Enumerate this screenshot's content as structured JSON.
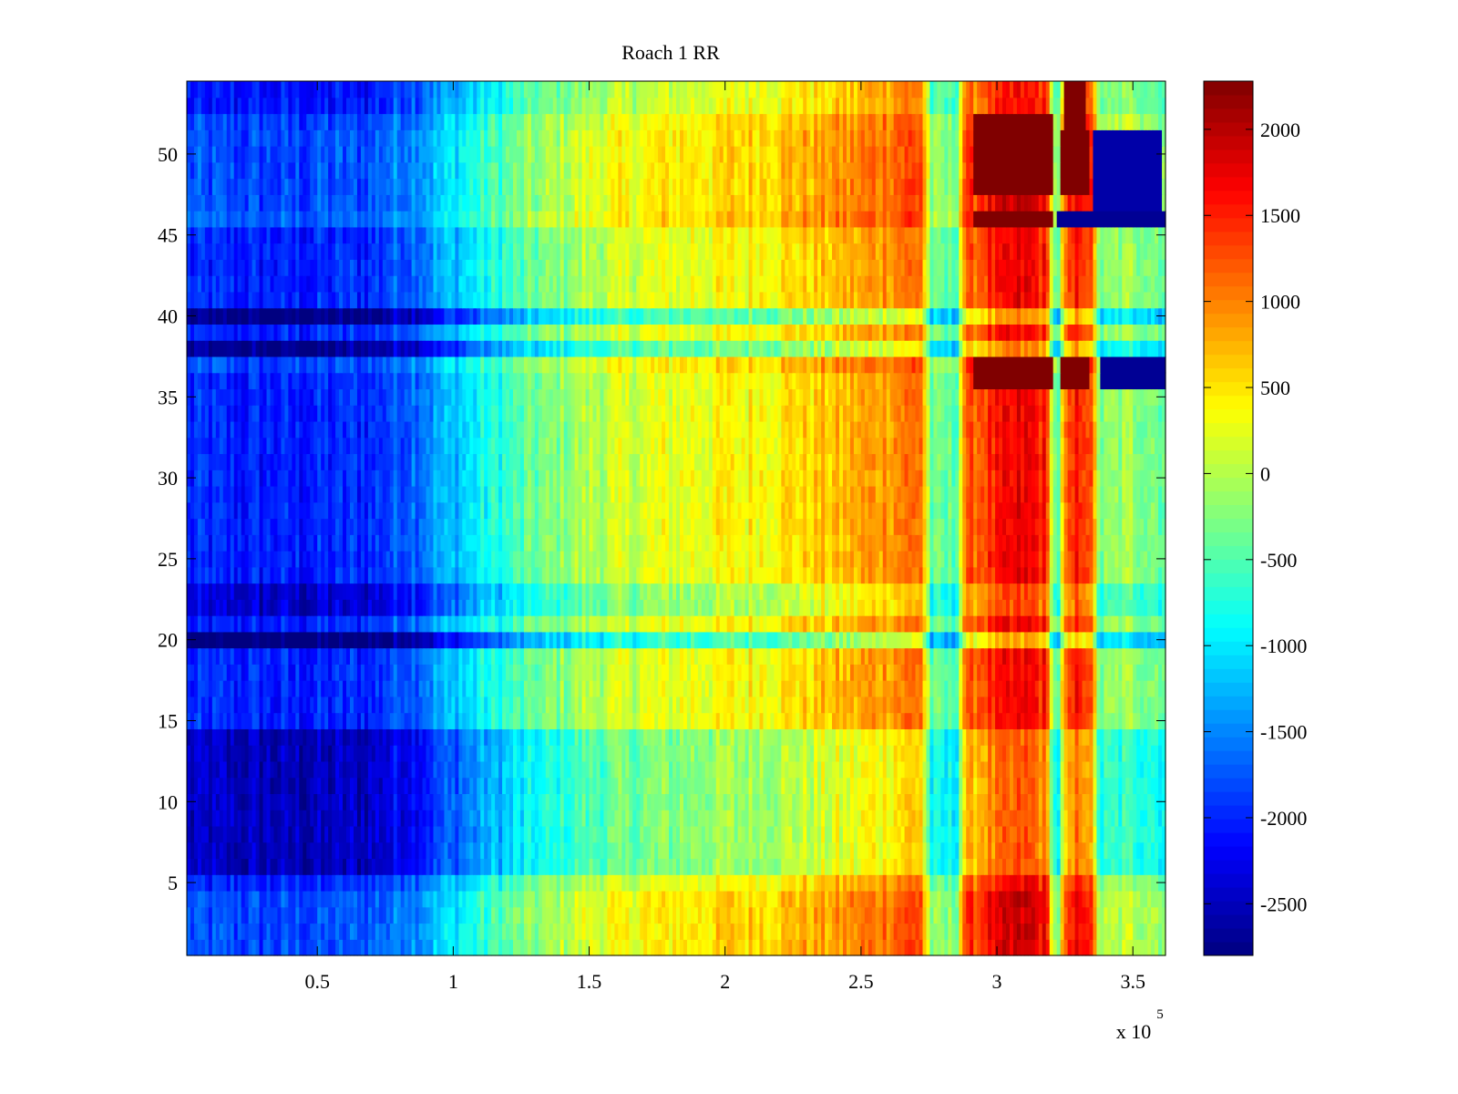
{
  "chart_data": {
    "type": "heatmap",
    "title": "Roach 1 RR",
    "xlabel": "",
    "ylabel": "",
    "x_exponent_label": "x 10",
    "x_exponent": "5",
    "xlim": [
      2000,
      362000
    ],
    "ylim": [
      0.5,
      54.5
    ],
    "rows": 54,
    "x_ticks": [
      {
        "value": 50000,
        "label": "0.5"
      },
      {
        "value": 100000,
        "label": "1"
      },
      {
        "value": 150000,
        "label": "1.5"
      },
      {
        "value": 200000,
        "label": "2"
      },
      {
        "value": 250000,
        "label": "2.5"
      },
      {
        "value": 300000,
        "label": "3"
      },
      {
        "value": 350000,
        "label": "3.5"
      }
    ],
    "y_ticks": [
      {
        "value": 5,
        "label": "5"
      },
      {
        "value": 10,
        "label": "10"
      },
      {
        "value": 15,
        "label": "15"
      },
      {
        "value": 20,
        "label": "20"
      },
      {
        "value": 25,
        "label": "25"
      },
      {
        "value": 30,
        "label": "30"
      },
      {
        "value": 35,
        "label": "35"
      },
      {
        "value": 40,
        "label": "40"
      },
      {
        "value": 45,
        "label": "45"
      },
      {
        "value": 50,
        "label": "50"
      }
    ],
    "colorbar": {
      "colormap": "jet",
      "range": [
        -2800,
        2280
      ],
      "ticks": [
        {
          "value": 2000,
          "label": "2000"
        },
        {
          "value": 1500,
          "label": "1500"
        },
        {
          "value": 1000,
          "label": "1000"
        },
        {
          "value": 500,
          "label": "500"
        },
        {
          "value": 0,
          "label": "0"
        },
        {
          "value": -500,
          "label": "-500"
        },
        {
          "value": -1000,
          "label": "-1000"
        },
        {
          "value": -1500,
          "label": "-1500"
        },
        {
          "value": -2000,
          "label": "-2000"
        },
        {
          "value": -2500,
          "label": "-2500"
        }
      ]
    },
    "column_profile": [
      {
        "x": 2000,
        "value": -2000
      },
      {
        "x": 40000,
        "value": -2050
      },
      {
        "x": 70000,
        "value": -1950
      },
      {
        "x": 90000,
        "value": -1500
      },
      {
        "x": 110000,
        "value": -900
      },
      {
        "x": 130000,
        "value": -400
      },
      {
        "x": 150000,
        "value": 0
      },
      {
        "x": 180000,
        "value": 250
      },
      {
        "x": 210000,
        "value": 400
      },
      {
        "x": 240000,
        "value": 650
      },
      {
        "x": 260000,
        "value": 950
      },
      {
        "x": 272000,
        "value": 1150
      },
      {
        "x": 276000,
        "value": -450
      },
      {
        "x": 285000,
        "value": -450
      },
      {
        "x": 288000,
        "value": 1000
      },
      {
        "x": 295000,
        "value": 1350
      },
      {
        "x": 310000,
        "value": 1700
      },
      {
        "x": 318000,
        "value": 1500
      },
      {
        "x": 322000,
        "value": -700
      },
      {
        "x": 325000,
        "value": 900
      },
      {
        "x": 330000,
        "value": 1600
      },
      {
        "x": 334000,
        "value": 1400
      },
      {
        "x": 338000,
        "value": -300
      },
      {
        "x": 350000,
        "value": -100
      },
      {
        "x": 362000,
        "value": -300
      }
    ],
    "row_offsets": [
      {
        "rows": [
          1,
          4
        ],
        "value": 200
      },
      {
        "rows": [
          6,
          14
        ],
        "value": -500
      },
      {
        "rows": [
          20,
          20
        ],
        "value": -900
      },
      {
        "rows": [
          22,
          23
        ],
        "value": -400
      },
      {
        "rows": [
          37,
          37
        ],
        "value": 200
      },
      {
        "rows": [
          38,
          38
        ],
        "value": -700
      },
      {
        "rows": [
          40,
          40
        ],
        "value": -800
      },
      {
        "rows": [
          46,
          46
        ],
        "value": 300
      },
      {
        "rows": [
          47,
          51
        ],
        "value": 200
      },
      {
        "rows": [
          52,
          52
        ],
        "value": 150
      },
      {
        "rows": [
          53,
          54
        ],
        "value": -100
      }
    ],
    "saturated_bands": [
      {
        "rows": [
          36,
          37
        ],
        "x_range": [
          292000,
          320000
        ],
        "value": 2280
      },
      {
        "rows": [
          46,
          46
        ],
        "x_range": [
          292000,
          320000
        ],
        "value": 2280
      },
      {
        "rows": [
          48,
          51
        ],
        "x_range": [
          292000,
          320000
        ],
        "value": 2280
      },
      {
        "rows": [
          52,
          52
        ],
        "x_range": [
          292000,
          320000
        ],
        "value": 2280
      },
      {
        "rows": [
          48,
          51
        ],
        "x_range": [
          324000,
          334000
        ],
        "value": 2280
      },
      {
        "rows": [
          52,
          54
        ],
        "x_range": [
          325000,
          333000
        ],
        "value": 2280
      },
      {
        "rows": [
          36,
          37
        ],
        "x_range": [
          324000,
          334000
        ],
        "value": 2280
      },
      {
        "rows": [
          36,
          37
        ],
        "x_range": [
          338000,
          362000
        ],
        "value": -2700
      },
      {
        "rows": [
          46,
          46
        ],
        "x_range": [
          322000,
          362000
        ],
        "value": -2700
      },
      {
        "rows": [
          47,
          51
        ],
        "x_range": [
          336000,
          360000
        ],
        "value": -2600
      }
    ],
    "noise_amplitude": 320
  }
}
